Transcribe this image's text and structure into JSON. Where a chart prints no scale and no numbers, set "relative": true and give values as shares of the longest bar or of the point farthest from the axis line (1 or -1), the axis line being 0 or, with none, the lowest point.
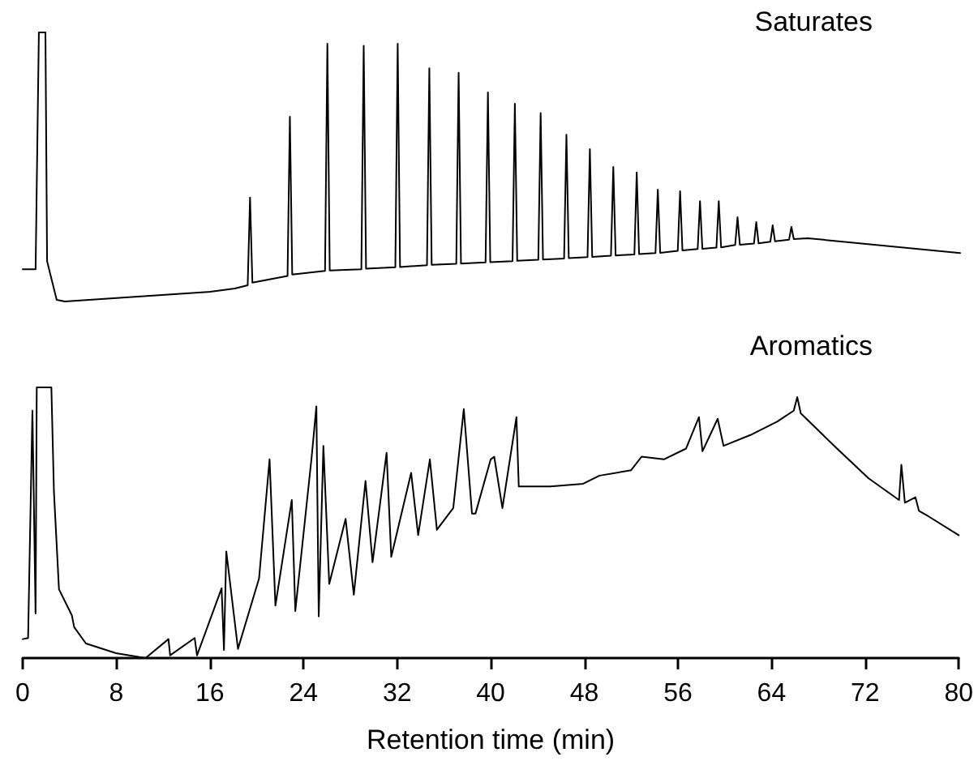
{
  "chart_data": [
    {
      "type": "line",
      "title": "Saturates",
      "relative": true,
      "xlim": [
        0,
        80
      ],
      "xticks": [
        0,
        8,
        16,
        24,
        32,
        40,
        48,
        56,
        64,
        72,
        80
      ],
      "tick_labels": false,
      "grid": false,
      "marker": "none",
      "line_style": "solid",
      "series": [
        {
          "color": "#000000",
          "x": [
            0,
            1.1,
            1.38,
            1.94,
            2.08,
            2.9,
            3.6,
            16,
            18.1,
            19.2,
            19.4,
            19.6,
            22.6,
            22.8,
            23.0,
            25.8,
            26.0,
            26.2,
            28.9,
            29.1,
            29.3,
            31.8,
            32.0,
            32.2,
            34.5,
            34.7,
            34.9,
            37.0,
            37.2,
            37.4,
            39.5,
            39.7,
            39.9,
            41.8,
            42.0,
            42.2,
            44.0,
            44.2,
            44.4,
            46.2,
            46.4,
            46.6,
            48.2,
            48.4,
            48.6,
            50.2,
            50.4,
            50.6,
            52.2,
            52.4,
            52.6,
            54.0,
            54.2,
            54.4,
            55.9,
            56.1,
            56.3,
            57.6,
            57.8,
            58.0,
            59.2,
            59.4,
            59.6,
            60.8,
            61.0,
            61.2,
            62.4,
            62.6,
            62.8,
            63.8,
            64.0,
            64.2,
            65.4,
            65.6,
            65.8,
            67.0,
            80
          ],
          "values": [
            0.12,
            0.12,
            1,
            1,
            0.15,
            0.006,
            0,
            0.036,
            0.048,
            0.06,
            0.386,
            0.07,
            0.095,
            0.687,
            0.1,
            0.114,
            0.958,
            0.115,
            0.12,
            0.95,
            0.122,
            0.127,
            0.958,
            0.128,
            0.135,
            0.867,
            0.136,
            0.14,
            0.85,
            0.141,
            0.145,
            0.777,
            0.146,
            0.15,
            0.735,
            0.151,
            0.155,
            0.7,
            0.156,
            0.16,
            0.62,
            0.161,
            0.165,
            0.566,
            0.166,
            0.17,
            0.5,
            0.171,
            0.175,
            0.48,
            0.176,
            0.18,
            0.416,
            0.181,
            0.188,
            0.41,
            0.19,
            0.195,
            0.373,
            0.196,
            0.2,
            0.373,
            0.201,
            0.21,
            0.313,
            0.211,
            0.215,
            0.295,
            0.216,
            0.222,
            0.283,
            0.224,
            0.23,
            0.277,
            0.232,
            0.235,
            0.18
          ]
        }
      ]
    },
    {
      "type": "line",
      "title": "Aromatics",
      "xlabel": "Retention time (min)",
      "relative": true,
      "xlim": [
        0,
        80
      ],
      "xticks": [
        0,
        8,
        16,
        24,
        32,
        40,
        48,
        56,
        64,
        72,
        80
      ],
      "grid": false,
      "marker": "none",
      "line_style": "solid",
      "series": [
        {
          "color": "#000000",
          "x": [
            0,
            0.46,
            0.83,
            1.1,
            1.2,
            2.45,
            2.67,
            3.1,
            4.2,
            4.4,
            5.4,
            7.98,
            10.5,
            12.46,
            12.6,
            14.7,
            14.9,
            17.0,
            17.2,
            17.4,
            18.4,
            20.2,
            21.1,
            21.6,
            23.0,
            23.3,
            24.7,
            25.1,
            25.3,
            25.7,
            26.2,
            27.6,
            28.3,
            29.3,
            29.9,
            31.1,
            31.5,
            33.2,
            33.8,
            34.8,
            35.4,
            36.8,
            37.7,
            38.4,
            38.7,
            40.0,
            40.3,
            41.0,
            42.2,
            42.4,
            45.1,
            47.9,
            49.3,
            52.0,
            52.9,
            54.8,
            56.7,
            57.8,
            58.1,
            59.4,
            59.9,
            62.2,
            64.5,
            65.9,
            66.2,
            66.5,
            69.6,
            72.3,
            74.9,
            75.1,
            75.4,
            76.3,
            76.6,
            77.4,
            80
          ],
          "values": [
            0.07,
            0.074,
            0.914,
            0.165,
            1,
            1,
            0.614,
            0.254,
            0.158,
            0.114,
            0.054,
            0.018,
            0,
            0.07,
            0.01,
            0.074,
            0.01,
            0.258,
            0.03,
            0.394,
            0.034,
            0.294,
            0.734,
            0.194,
            0.584,
            0.174,
            0.744,
            0.93,
            0.154,
            0.784,
            0.274,
            0.514,
            0.234,
            0.654,
            0.354,
            0.758,
            0.374,
            0.684,
            0.454,
            0.734,
            0.474,
            0.554,
            0.92,
            0.534,
            0.534,
            0.734,
            0.744,
            0.554,
            0.89,
            0.634,
            0.634,
            0.644,
            0.674,
            0.694,
            0.744,
            0.734,
            0.774,
            0.89,
            0.764,
            0.884,
            0.784,
            0.824,
            0.874,
            0.914,
            0.964,
            0.904,
            0.774,
            0.664,
            0.584,
            0.714,
            0.574,
            0.594,
            0.544,
            0.524,
            0.454
          ]
        }
      ]
    }
  ]
}
